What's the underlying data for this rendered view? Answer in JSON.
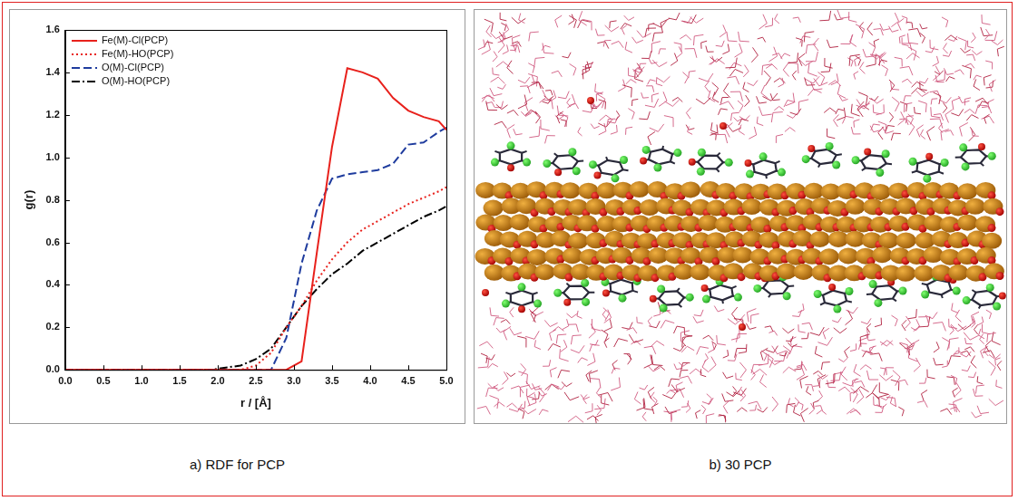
{
  "chart_data": {
    "type": "line",
    "x_label": "r / [Å]",
    "y_label": "g(r)",
    "x": [
      0,
      0.3,
      0.7,
      1.1,
      1.5,
      1.9,
      2.3,
      2.5,
      2.7,
      2.9,
      3.1,
      3.3,
      3.5,
      3.7,
      3.9,
      4.1,
      4.3,
      4.5,
      4.7,
      4.9,
      5.0
    ],
    "series": [
      {
        "name": "Fe(M)-Cl(PCP)",
        "color": "#e8211c",
        "line_style": "solid",
        "values": [
          0,
          0,
          0,
          0,
          0,
          0,
          0,
          0,
          0,
          0,
          0.04,
          0.55,
          1.05,
          1.42,
          1.4,
          1.37,
          1.28,
          1.22,
          1.19,
          1.17,
          1.13
        ]
      },
      {
        "name": "Fe(M)-HO(PCP)",
        "color": "#e8211c",
        "line_style": "dotted",
        "values": [
          0,
          0,
          0,
          0,
          0,
          0,
          0,
          0.02,
          0.08,
          0.2,
          0.3,
          0.42,
          0.52,
          0.6,
          0.66,
          0.7,
          0.74,
          0.78,
          0.81,
          0.84,
          0.86
        ]
      },
      {
        "name": "O(M)-Cl(PCP)",
        "color": "#1f3c9e",
        "line_style": "dashed",
        "values": [
          0,
          0,
          0,
          0,
          0,
          0,
          0,
          0,
          0,
          0.15,
          0.5,
          0.75,
          0.9,
          0.92,
          0.93,
          0.94,
          0.97,
          1.06,
          1.07,
          1.12,
          1.14
        ]
      },
      {
        "name": "O(M)-HO(PCP)",
        "color": "#000000",
        "line_style": "dashdot",
        "values": [
          0,
          0,
          0,
          0,
          0,
          0,
          0.02,
          0.05,
          0.1,
          0.2,
          0.3,
          0.38,
          0.45,
          0.5,
          0.56,
          0.6,
          0.64,
          0.68,
          0.72,
          0.75,
          0.77
        ]
      }
    ],
    "xlim": [
      0,
      5
    ],
    "xticks": [
      {
        "value": 0,
        "label": "0.0"
      },
      0.5,
      {
        "value": 1,
        "label": "1.0"
      },
      1.5,
      {
        "value": 2,
        "label": "2.0"
      },
      2.5,
      {
        "value": 3,
        "label": "3.0"
      },
      3.5,
      {
        "value": 4,
        "label": "4.0"
      },
      4.5,
      {
        "value": 5,
        "label": "5.0"
      }
    ],
    "ylim": [
      0,
      1.6
    ],
    "yticks": [
      {
        "value": 0,
        "label": "0.0"
      },
      0.2,
      0.4,
      0.6,
      0.8,
      {
        "value": 1,
        "label": "1.0"
      },
      1.2,
      1.4,
      1.6
    ],
    "grid": false,
    "legend": "upper left"
  },
  "captions": [
    "a) RDF for PCP",
    "b) 30 PCP"
  ]
}
